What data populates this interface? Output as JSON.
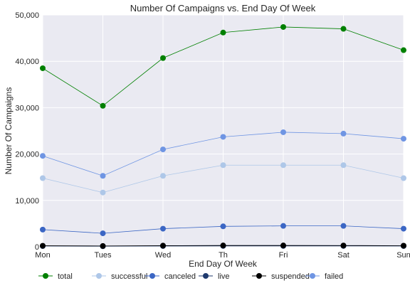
{
  "chart_data": {
    "type": "line",
    "title": "Number Of Campaigns vs. End Day Of Week",
    "xlabel": "End Day Of Week",
    "ylabel": "Number Of Campaigns",
    "categories": [
      "Mon",
      "Tues",
      "Wed",
      "Th",
      "Fri",
      "Sat",
      "Sun"
    ],
    "ylim": [
      0,
      50000
    ],
    "yticks": [
      0,
      10000,
      20000,
      30000,
      40000,
      50000
    ],
    "ytick_labels": [
      "0",
      "10,000",
      "20,000",
      "30,000",
      "40,000",
      "50,000"
    ],
    "grid": true,
    "legend_position": "bottom",
    "series": [
      {
        "name": "total",
        "color": "#008000",
        "values": [
          38500,
          30400,
          40700,
          46200,
          47400,
          47000,
          42400
        ]
      },
      {
        "name": "successful",
        "color": "#aec7e8",
        "values": [
          14800,
          11700,
          15300,
          17600,
          17600,
          17600,
          14800
        ]
      },
      {
        "name": "canceled",
        "color": "#3b66c4",
        "values": [
          3700,
          2900,
          3900,
          4400,
          4500,
          4500,
          3900
        ]
      },
      {
        "name": "live",
        "color": "#1f3a6e",
        "values": [
          150,
          110,
          160,
          180,
          180,
          180,
          160
        ]
      },
      {
        "name": "suspended",
        "color": "#000000",
        "values": [
          220,
          170,
          240,
          280,
          280,
          270,
          230
        ]
      },
      {
        "name": "failed",
        "color": "#6f95e3",
        "values": [
          19600,
          15300,
          21000,
          23700,
          24700,
          24400,
          23300
        ]
      }
    ]
  }
}
